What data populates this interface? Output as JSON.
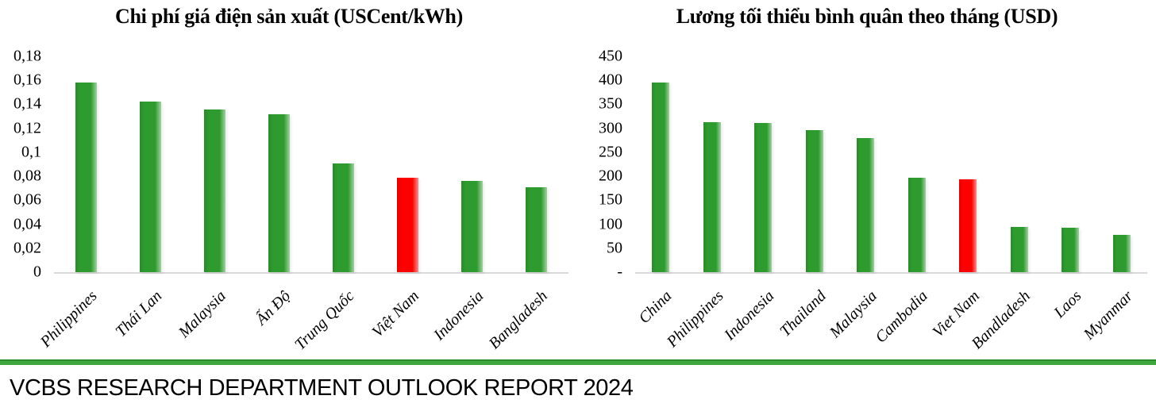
{
  "footer": {
    "text": "VCBS RESEARCH DEPARTMENT OUTLOOK REPORT 2024"
  },
  "colors": {
    "bar_green": "#2E9B2E",
    "bar_red": "#FF0000",
    "axis_line": "#D9D9D9",
    "footer_green": "#28963C"
  },
  "chart_data": [
    {
      "type": "bar",
      "title": "Chi phí giá điện sản xuất (USCent/kWh)",
      "categories": [
        "Philippines",
        "Thái Lan",
        "Malaysia",
        "Ấn Độ",
        "Trung Quốc",
        "Việt Nam",
        "Indonesia",
        "Bangladesh"
      ],
      "values": [
        0.158,
        0.142,
        0.136,
        0.132,
        0.091,
        0.079,
        0.076,
        0.071
      ],
      "highlight_index": 5,
      "highlight_category": "Việt Nam",
      "xlabel": "",
      "ylabel": "",
      "ylim": [
        0,
        0.18
      ],
      "ytick_values": [
        0,
        0.02,
        0.04,
        0.06,
        0.08,
        0.1,
        0.12,
        0.14,
        0.16,
        0.18
      ],
      "ytick_labels": [
        "0",
        "0,02",
        "0,04",
        "0,06",
        "0,08",
        "0,1",
        "0,12",
        "0,14",
        "0,16",
        "0,18"
      ],
      "grid": false,
      "legend": null
    },
    {
      "type": "bar",
      "title": "Lương tối thiểu bình quân theo tháng (USD)",
      "categories": [
        "China",
        "Philippines",
        "Indonesia",
        "Thailand",
        "Malaysia",
        "Cambodia",
        "Viet Nam",
        "Bandladesh",
        "Laos",
        "Myanmar"
      ],
      "values": [
        395,
        312,
        311,
        296,
        279,
        197,
        193,
        95,
        93,
        78
      ],
      "highlight_index": 6,
      "highlight_category": "Viet Nam",
      "xlabel": "",
      "ylabel": "",
      "ylim": [
        0,
        450
      ],
      "ytick_values": [
        0,
        50,
        100,
        150,
        200,
        250,
        300,
        350,
        400,
        450
      ],
      "ytick_labels": [
        "-",
        "50",
        "100",
        "150",
        "200",
        "250",
        "300",
        "350",
        "400",
        "450"
      ],
      "grid": false,
      "legend": null
    }
  ]
}
